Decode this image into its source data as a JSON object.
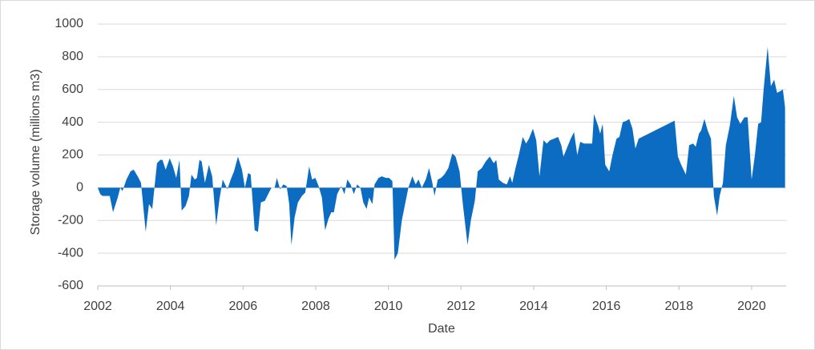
{
  "chart_data": {
    "type": "area",
    "x_label": "Date",
    "y_label": "Storage volume (millions m3)",
    "color": "#0b6cc2",
    "grid": true,
    "xlim": [
      2002,
      2020.95
    ],
    "xticks": [
      2002,
      2004,
      2006,
      2008,
      2010,
      2012,
      2014,
      2016,
      2018,
      2020
    ],
    "ylim": [
      -600,
      1000
    ],
    "yticks": [
      -600,
      -400,
      -200,
      0,
      200,
      400,
      600,
      800,
      1000
    ],
    "x": [
      2002.0,
      2002.07,
      2002.13,
      2002.33,
      2002.42,
      2002.55,
      2002.62,
      2002.68,
      2002.79,
      2002.9,
      2002.99,
      2003.1,
      2003.19,
      2003.32,
      2003.41,
      2003.5,
      2003.63,
      2003.72,
      2003.78,
      2003.87,
      2003.98,
      2004.07,
      2004.16,
      2004.25,
      2004.31,
      2004.42,
      2004.51,
      2004.58,
      2004.67,
      2004.73,
      2004.8,
      2004.86,
      2004.95,
      2005.06,
      2005.15,
      2005.26,
      2005.35,
      2005.44,
      2005.57,
      2005.66,
      2005.75,
      2005.86,
      2005.97,
      2006.05,
      2006.14,
      2006.21,
      2006.32,
      2006.41,
      2006.49,
      2006.6,
      2006.69,
      2006.78,
      2006.87,
      2006.93,
      2007.02,
      2007.11,
      2007.2,
      2007.27,
      2007.33,
      2007.42,
      2007.51,
      2007.62,
      2007.71,
      2007.82,
      2007.9,
      2007.99,
      2008.08,
      2008.17,
      2008.26,
      2008.35,
      2008.43,
      2008.5,
      2008.59,
      2008.7,
      2008.79,
      2008.87,
      2008.96,
      2009.05,
      2009.14,
      2009.23,
      2009.31,
      2009.4,
      2009.47,
      2009.56,
      2009.62,
      2009.73,
      2009.82,
      2009.93,
      2010.02,
      2010.11,
      2010.17,
      2010.26,
      2010.37,
      2010.46,
      2010.55,
      2010.66,
      2010.75,
      2010.83,
      2010.92,
      2011.03,
      2011.12,
      2011.21,
      2011.27,
      2011.36,
      2011.45,
      2011.54,
      2011.65,
      2011.76,
      2011.85,
      2011.96,
      2012.05,
      2012.18,
      2012.27,
      2012.38,
      2012.46,
      2012.57,
      2012.68,
      2012.79,
      2012.9,
      2012.97,
      2013.04,
      2013.15,
      2013.26,
      2013.35,
      2013.41,
      2013.5,
      2013.59,
      2013.7,
      2013.79,
      2013.87,
      2013.98,
      2014.07,
      2014.16,
      2014.27,
      2014.36,
      2014.45,
      2014.56,
      2014.67,
      2014.76,
      2014.82,
      2014.91,
      2015.02,
      2015.11,
      2015.2,
      2015.28,
      2015.39,
      2015.5,
      2015.61,
      2015.66,
      2015.77,
      2015.83,
      2015.9,
      2015.97,
      2016.08,
      2016.17,
      2016.28,
      2016.36,
      2016.45,
      2016.56,
      2016.63,
      2016.72,
      2016.8,
      2016.89,
      2017.88,
      2017.97,
      2018.06,
      2018.19,
      2018.28,
      2018.39,
      2018.46,
      2018.55,
      2018.61,
      2018.7,
      2018.79,
      2018.88,
      2018.96,
      2019.05,
      2019.12,
      2019.21,
      2019.29,
      2019.4,
      2019.51,
      2019.6,
      2019.69,
      2019.8,
      2019.89,
      2020.0,
      2020.09,
      2020.18,
      2020.26,
      2020.33,
      2020.44,
      2020.53,
      2020.62,
      2020.7,
      2020.79,
      2020.86,
      2020.92
    ],
    "values": [
      0,
      -40,
      -50,
      -50,
      -150,
      -60,
      0,
      -20,
      50,
      100,
      110,
      70,
      30,
      -270,
      -100,
      -130,
      150,
      170,
      170,
      110,
      180,
      130,
      60,
      170,
      -140,
      -110,
      -50,
      80,
      50,
      60,
      170,
      160,
      30,
      140,
      70,
      -230,
      -70,
      50,
      -10,
      50,
      100,
      190,
      110,
      0,
      90,
      80,
      -260,
      -270,
      -90,
      -80,
      -40,
      0,
      0,
      60,
      -10,
      20,
      10,
      -100,
      -350,
      -180,
      -90,
      -50,
      -30,
      130,
      50,
      60,
      10,
      -60,
      -260,
      -190,
      -150,
      -150,
      -40,
      10,
      -40,
      50,
      20,
      -40,
      20,
      0,
      -90,
      -130,
      -60,
      -100,
      20,
      60,
      70,
      60,
      60,
      40,
      -440,
      -400,
      -200,
      -100,
      0,
      70,
      20,
      50,
      0,
      50,
      120,
      30,
      -50,
      50,
      60,
      80,
      120,
      210,
      190,
      100,
      -100,
      -350,
      -200,
      -80,
      100,
      120,
      160,
      190,
      150,
      170,
      50,
      30,
      20,
      70,
      30,
      120,
      200,
      310,
      270,
      300,
      360,
      290,
      70,
      290,
      270,
      290,
      300,
      310,
      260,
      190,
      240,
      300,
      340,
      200,
      280,
      270,
      270,
      270,
      450,
      380,
      330,
      390,
      140,
      100,
      200,
      300,
      310,
      400,
      410,
      420,
      360,
      240,
      300,
      410,
      190,
      140,
      80,
      260,
      270,
      250,
      330,
      350,
      420,
      350,
      300,
      -50,
      -170,
      -50,
      30,
      260,
      380,
      560,
      430,
      390,
      430,
      430,
      50,
      200,
      390,
      400,
      600,
      860,
      620,
      660,
      580,
      590,
      600,
      490
    ]
  }
}
